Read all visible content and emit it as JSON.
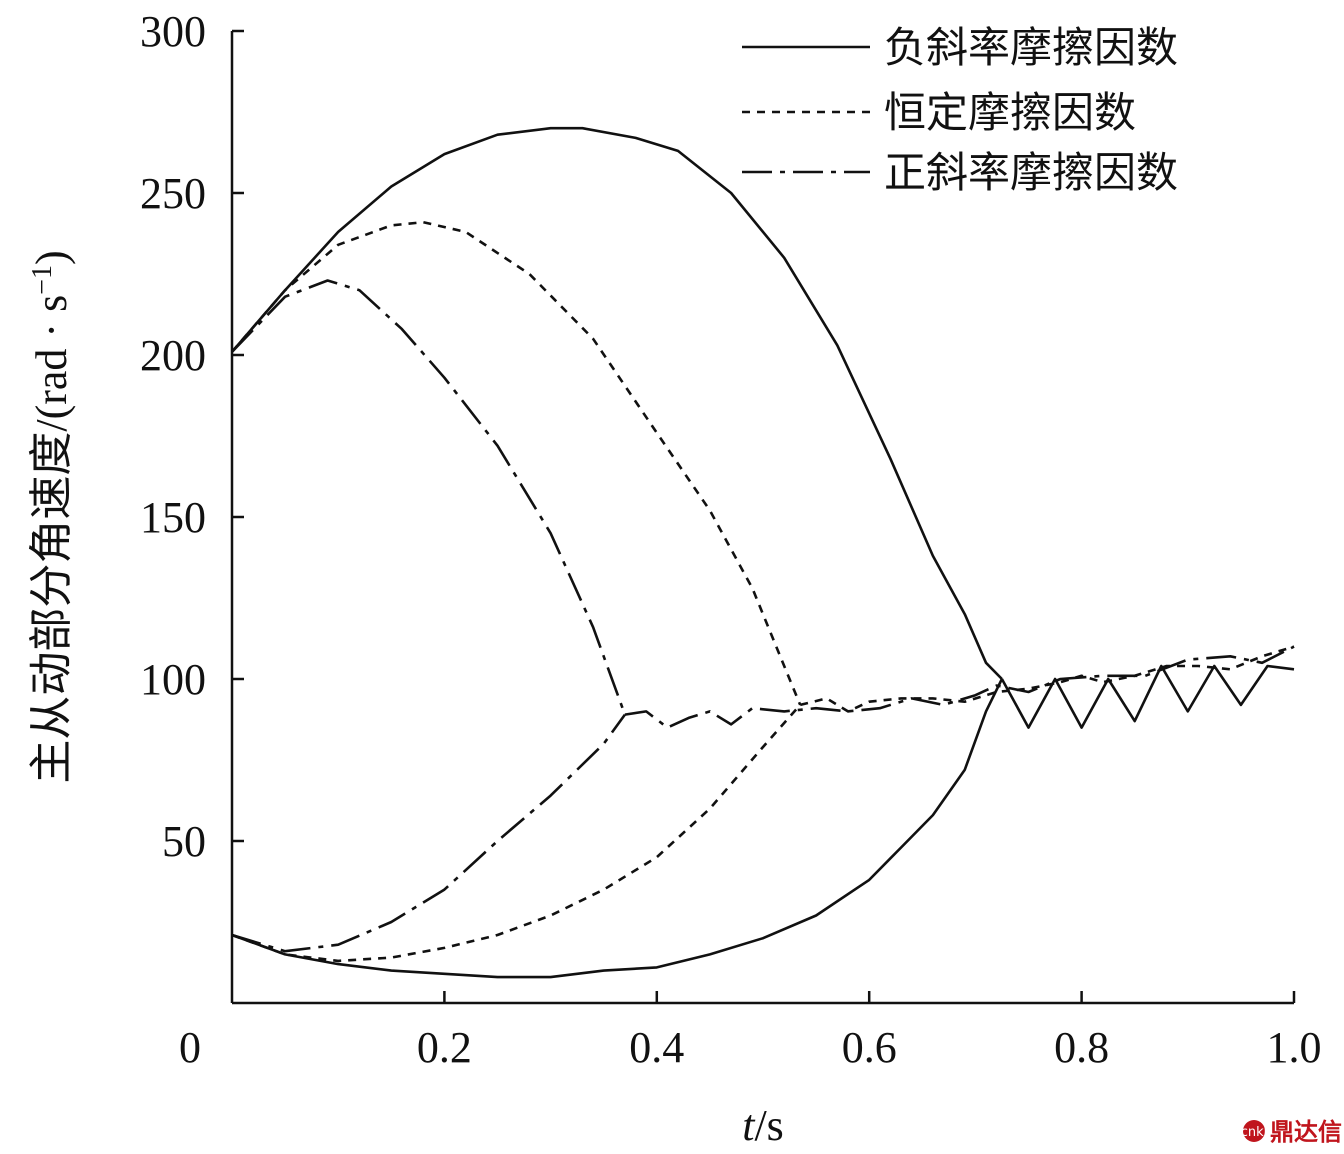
{
  "chart_data": {
    "type": "line",
    "xlabel_italic": "t",
    "xlabel_unit": "/s",
    "ylabel": "主从动部分角速度/(rad · s",
    "ylabel_sup": "−1",
    "ylabel_close": ")",
    "xlim": [
      0,
      1.0
    ],
    "ylim": [
      0,
      300
    ],
    "x_ticks": [
      "0",
      "0.2",
      "0.4",
      "0.6",
      "0.8",
      "1.0"
    ],
    "y_ticks": [
      "50",
      "100",
      "150",
      "200",
      "250",
      "300"
    ],
    "x_tick_values": [
      0,
      0.2,
      0.4,
      0.6,
      0.8,
      1.0
    ],
    "y_tick_values": [
      50,
      100,
      150,
      200,
      250,
      300
    ],
    "grid": false,
    "legend_position": "top-right",
    "series": [
      {
        "name": "负斜率摩擦因数",
        "style": "solid",
        "driving": [
          [
            0,
            201
          ],
          [
            0.05,
            220
          ],
          [
            0.1,
            238
          ],
          [
            0.15,
            252
          ],
          [
            0.2,
            262
          ],
          [
            0.25,
            268
          ],
          [
            0.3,
            270
          ],
          [
            0.33,
            270
          ],
          [
            0.38,
            267
          ],
          [
            0.42,
            263
          ],
          [
            0.47,
            250
          ],
          [
            0.52,
            230
          ],
          [
            0.57,
            203
          ],
          [
            0.62,
            168
          ],
          [
            0.66,
            138
          ],
          [
            0.69,
            120
          ],
          [
            0.71,
            105
          ],
          [
            0.725,
            100
          ]
        ],
        "driven": [
          [
            0,
            21
          ],
          [
            0.05,
            15
          ],
          [
            0.1,
            12
          ],
          [
            0.15,
            10
          ],
          [
            0.2,
            9
          ],
          [
            0.25,
            8
          ],
          [
            0.3,
            8
          ],
          [
            0.35,
            10
          ],
          [
            0.4,
            11
          ],
          [
            0.45,
            15
          ],
          [
            0.5,
            20
          ],
          [
            0.55,
            27
          ],
          [
            0.6,
            38
          ],
          [
            0.63,
            48
          ],
          [
            0.66,
            58
          ],
          [
            0.69,
            72
          ],
          [
            0.71,
            90
          ],
          [
            0.725,
            100
          ]
        ],
        "merged": [
          [
            0.725,
            100
          ],
          [
            0.75,
            85
          ],
          [
            0.775,
            100
          ],
          [
            0.8,
            85
          ],
          [
            0.825,
            100
          ],
          [
            0.85,
            87
          ],
          [
            0.875,
            104
          ],
          [
            0.9,
            90
          ],
          [
            0.925,
            104
          ],
          [
            0.95,
            92
          ],
          [
            0.975,
            104
          ],
          [
            1.0,
            103
          ]
        ]
      },
      {
        "name": "恒定摩擦因数",
        "style": "dotted",
        "driving": [
          [
            0,
            201
          ],
          [
            0.05,
            220
          ],
          [
            0.1,
            234
          ],
          [
            0.15,
            240
          ],
          [
            0.18,
            241
          ],
          [
            0.22,
            238
          ],
          [
            0.28,
            225
          ],
          [
            0.34,
            205
          ],
          [
            0.4,
            176
          ],
          [
            0.45,
            152
          ],
          [
            0.49,
            128
          ],
          [
            0.52,
            104
          ],
          [
            0.535,
            92
          ]
        ],
        "driven": [
          [
            0,
            21
          ],
          [
            0.05,
            15
          ],
          [
            0.1,
            13
          ],
          [
            0.15,
            14
          ],
          [
            0.2,
            17
          ],
          [
            0.25,
            21
          ],
          [
            0.3,
            27
          ],
          [
            0.35,
            35
          ],
          [
            0.4,
            45
          ],
          [
            0.45,
            60
          ],
          [
            0.5,
            79
          ],
          [
            0.535,
            92
          ]
        ],
        "merged": [
          [
            0.535,
            92
          ],
          [
            0.56,
            94
          ],
          [
            0.58,
            90
          ],
          [
            0.6,
            93
          ],
          [
            0.63,
            94
          ],
          [
            0.66,
            94
          ],
          [
            0.69,
            93
          ],
          [
            0.72,
            96
          ],
          [
            0.75,
            97
          ],
          [
            0.78,
            99
          ],
          [
            0.8,
            101
          ],
          [
            0.82,
            99
          ],
          [
            0.85,
            101
          ],
          [
            0.88,
            104
          ],
          [
            0.91,
            104
          ],
          [
            0.94,
            103
          ],
          [
            0.97,
            107
          ],
          [
            1.0,
            110
          ]
        ]
      },
      {
        "name": "正斜率摩擦因数",
        "style": "dash-dot",
        "driving": [
          [
            0,
            201
          ],
          [
            0.05,
            218
          ],
          [
            0.09,
            223
          ],
          [
            0.12,
            220
          ],
          [
            0.16,
            208
          ],
          [
            0.2,
            193
          ],
          [
            0.25,
            172
          ],
          [
            0.3,
            145
          ],
          [
            0.34,
            116
          ],
          [
            0.37,
            89
          ]
        ],
        "driven": [
          [
            0,
            21
          ],
          [
            0.05,
            16
          ],
          [
            0.1,
            18
          ],
          [
            0.15,
            25
          ],
          [
            0.2,
            35
          ],
          [
            0.25,
            50
          ],
          [
            0.3,
            64
          ],
          [
            0.35,
            80
          ],
          [
            0.37,
            89
          ]
        ],
        "merged": [
          [
            0.37,
            89
          ],
          [
            0.39,
            90
          ],
          [
            0.41,
            85
          ],
          [
            0.43,
            88
          ],
          [
            0.45,
            90
          ],
          [
            0.47,
            86
          ],
          [
            0.49,
            91
          ],
          [
            0.52,
            90
          ],
          [
            0.55,
            91
          ],
          [
            0.58,
            90
          ],
          [
            0.61,
            91
          ],
          [
            0.64,
            94
          ],
          [
            0.67,
            92
          ],
          [
            0.7,
            95
          ],
          [
            0.72,
            98
          ],
          [
            0.75,
            96
          ],
          [
            0.78,
            100
          ],
          [
            0.82,
            101
          ],
          [
            0.86,
            101
          ],
          [
            0.9,
            106
          ],
          [
            0.94,
            107
          ],
          [
            0.97,
            105
          ],
          [
            1.0,
            110
          ]
        ]
      }
    ]
  },
  "watermark": {
    "text": "鼎达信",
    "logo_color": "#c0151d"
  }
}
